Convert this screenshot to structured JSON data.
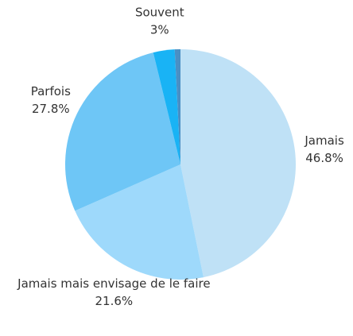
{
  "chart_data": {
    "type": "pie",
    "categories": [
      "Jamais",
      "Jamais mais envisage de le faire",
      "Parfois",
      "Souvent",
      null
    ],
    "values": [
      46.8,
      21.6,
      27.8,
      3,
      0.8
    ],
    "value_labels": [
      "46.8%",
      "21.6%",
      "27.8%",
      "3%",
      null
    ],
    "colors": [
      "#bfe1f6",
      "#9ed9fb",
      "#6ec6f6",
      "#19b3f5",
      "#4a8fc4"
    ]
  }
}
